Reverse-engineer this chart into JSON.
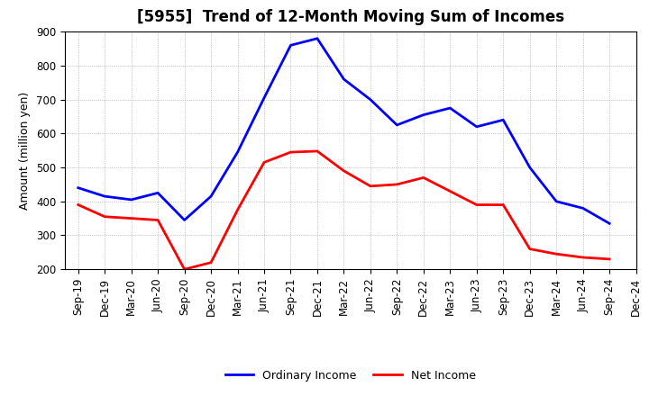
{
  "title": "[5955]  Trend of 12-Month Moving Sum of Incomes",
  "ylabel": "Amount (million yen)",
  "ylim": [
    200,
    900
  ],
  "yticks": [
    200,
    300,
    400,
    500,
    600,
    700,
    800,
    900
  ],
  "x_labels": [
    "Sep-19",
    "Dec-19",
    "Mar-20",
    "Jun-20",
    "Sep-20",
    "Dec-20",
    "Mar-21",
    "Jun-21",
    "Sep-21",
    "Dec-21",
    "Mar-22",
    "Jun-22",
    "Sep-22",
    "Dec-22",
    "Mar-23",
    "Jun-23",
    "Sep-23",
    "Dec-23",
    "Mar-24",
    "Jun-24",
    "Sep-24",
    "Dec-24"
  ],
  "ordinary_income": [
    440,
    415,
    405,
    425,
    345,
    415,
    545,
    705,
    860,
    880,
    760,
    700,
    625,
    655,
    675,
    620,
    640,
    500,
    400,
    380,
    335,
    null
  ],
  "net_income": [
    390,
    355,
    350,
    345,
    200,
    220,
    375,
    515,
    545,
    548,
    490,
    445,
    450,
    470,
    430,
    390,
    390,
    260,
    245,
    235,
    230,
    null
  ],
  "ordinary_income_color": "#0000FF",
  "net_income_color": "#FF0000",
  "line_width": 2.0,
  "legend_labels": [
    "Ordinary Income",
    "Net Income"
  ],
  "background_color": "#FFFFFF",
  "grid_color": "#999999",
  "title_fontsize": 12,
  "axis_fontsize": 9,
  "tick_fontsize": 8.5
}
